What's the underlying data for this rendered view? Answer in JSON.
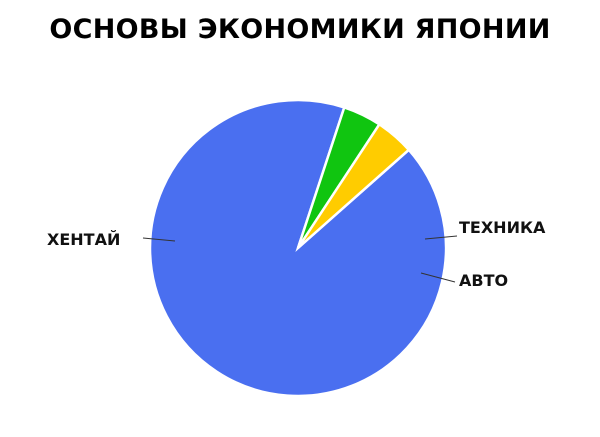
{
  "chart_data": {
    "type": "pie",
    "title": "ОСНОВЫ ЭКОНОМИКИ ЯПОНИИ",
    "categories": [
      "ХЕНТАЙ",
      "ТЕХНИКА",
      "АВТО"
    ],
    "values": [
      91.6,
      4.2,
      4.2
    ],
    "colors": [
      "#4a6ff0",
      "#10c510",
      "#ffcc00"
    ],
    "legend": "none",
    "labels_placement": "outside with leader lines"
  }
}
